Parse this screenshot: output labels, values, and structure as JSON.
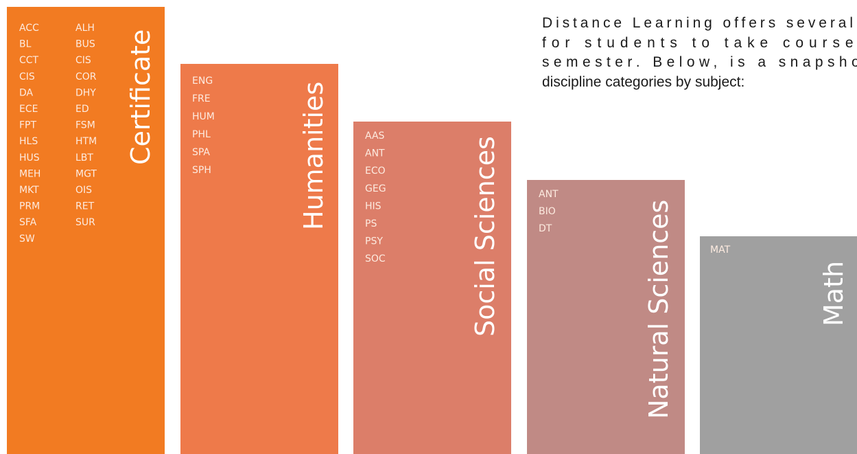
{
  "intro": [
    "Distance Learning offers several",
    "for students to take courses",
    "semester. Below, is a snapshot",
    "discipline categories by subject:"
  ],
  "columns": [
    {
      "title": "Certificate",
      "codes": [
        "ACC",
        "ALH",
        "BL",
        "BUS",
        "CCT",
        "CIS",
        "CIS",
        "COR",
        "DA",
        "DHY",
        "ECE",
        "ED",
        "FPT",
        "FSM",
        "HLS",
        "HTM",
        "HUS",
        "LBT",
        "MEH",
        "MGT",
        "MKT",
        "OIS",
        "PRM",
        "RET",
        "SFA",
        "SUR",
        "SW"
      ]
    },
    {
      "title": "Humanities",
      "codes": [
        "ENG",
        "FRE",
        "HUM",
        "PHL",
        "SPA",
        "SPH"
      ]
    },
    {
      "title": "Social Sciences",
      "codes": [
        "AAS",
        "ANT",
        "ECO",
        "GEG",
        "HIS",
        "PS",
        "PSY",
        "SOC"
      ]
    },
    {
      "title": "Natural Sciences",
      "codes": [
        "ANT",
        "BIO",
        "DT"
      ]
    },
    {
      "title": "Math",
      "codes": [
        "MAT"
      ]
    }
  ]
}
